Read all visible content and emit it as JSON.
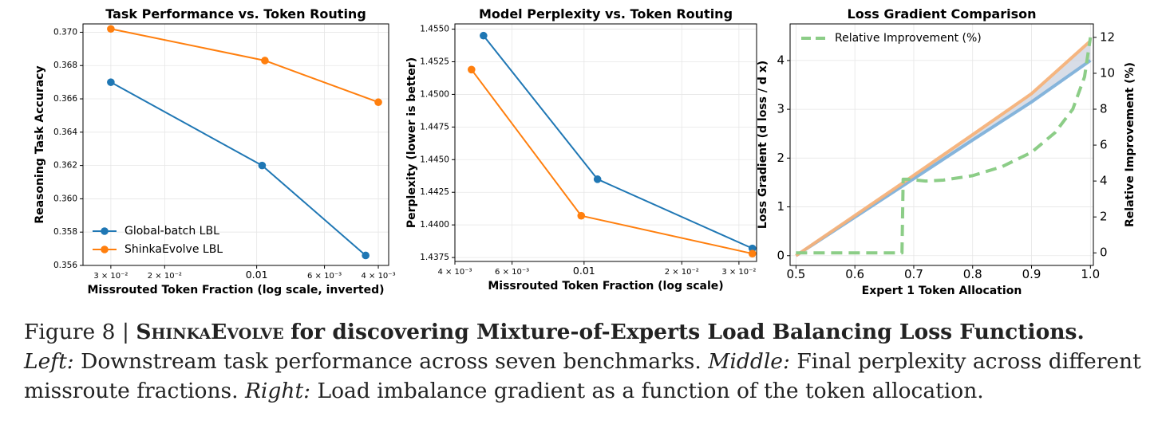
{
  "chart_data": [
    {
      "type": "line",
      "title": "Task Performance vs. Token Routing",
      "xlabel": "Missrouted Token Fraction (log scale, inverted)",
      "ylabel": "Reasoning Task Accuracy",
      "xscale": "log-inverted",
      "xlim": [
        0.037,
        0.0037
      ],
      "ylim": [
        0.356,
        0.3705
      ],
      "xticks": [
        {
          "value": 0.03,
          "label": "3 × 10⁻²"
        },
        {
          "value": 0.02,
          "label": "2 × 10⁻²"
        },
        {
          "value": 0.01,
          "label": "0.01"
        },
        {
          "value": 0.006,
          "label": "6 × 10⁻³"
        },
        {
          "value": 0.004,
          "label": "4 × 10⁻³"
        }
      ],
      "yticks": [
        "0.356",
        "0.358",
        "0.360",
        "0.362",
        "0.364",
        "0.366",
        "0.368",
        "0.370"
      ],
      "grid": true,
      "legend": "lower-left",
      "series": [
        {
          "name": "Global-batch LBL",
          "color": "#1f77b4",
          "x": [
            0.03,
            0.0096,
            0.0044
          ],
          "y": [
            0.367,
            0.362,
            0.3566
          ]
        },
        {
          "name": "ShinkaEvolve LBL",
          "color": "#ff7f0e",
          "x": [
            0.03,
            0.0094,
            0.004
          ],
          "y": [
            0.3702,
            0.3683,
            0.3658
          ]
        }
      ]
    },
    {
      "type": "line",
      "title": "Model Perplexity vs. Token Routing",
      "xlabel": "Missrouted Token Fraction (log scale)",
      "ylabel": "Perplexity (lower is better)",
      "xscale": "log",
      "xlim": [
        0.004,
        0.034
      ],
      "ylim": [
        1.4372,
        1.4554
      ],
      "xticks": [
        {
          "value": 0.004,
          "label": "4 × 10⁻³"
        },
        {
          "value": 0.006,
          "label": "6 × 10⁻³"
        },
        {
          "value": 0.01,
          "label": "0.01"
        },
        {
          "value": 0.02,
          "label": "2 × 10⁻²"
        },
        {
          "value": 0.03,
          "label": "3 × 10⁻²"
        }
      ],
      "yticks": [
        "1.4375",
        "1.4400",
        "1.4425",
        "1.4450",
        "1.4475",
        "1.4500",
        "1.4525",
        "1.4550"
      ],
      "grid": true,
      "series": [
        {
          "name": "",
          "color": "#1f77b4",
          "x": [
            0.0049,
            0.011,
            0.033
          ],
          "y": [
            1.4545,
            1.4435,
            1.4382
          ]
        },
        {
          "name": "",
          "color": "#ff7f0e",
          "x": [
            0.0045,
            0.0098,
            0.033
          ],
          "y": [
            1.4519,
            1.4407,
            1.4378
          ]
        }
      ]
    },
    {
      "type": "line",
      "title": "Loss Gradient Comparison",
      "xlabel": "Expert 1 Token Allocation",
      "ylabel": "Loss Gradient (d loss / d x)",
      "ylabel_right": "Relative Improvement (%)",
      "xlim": [
        0.49,
        1.005
      ],
      "ylim": [
        -0.2,
        4.75
      ],
      "ylim_right": [
        -0.7,
        12.75
      ],
      "xticks": [
        "0.5",
        "0.6",
        "0.7",
        "0.8",
        "0.9",
        "1.0"
      ],
      "yticks": [
        "0",
        "1",
        "2",
        "3",
        "4"
      ],
      "yticks_right": [
        "0",
        "2",
        "4",
        "6",
        "8",
        "10",
        "12"
      ],
      "grid": true,
      "legend": "top-left",
      "series": [
        {
          "name": "",
          "color": "#7fb1da",
          "x": [
            0.5,
            0.68,
            0.8,
            0.9,
            1.0
          ],
          "y": [
            0.0,
            1.42,
            2.37,
            3.15,
            4.0
          ]
        },
        {
          "name": "",
          "color": "#f5b27a",
          "x": [
            0.5,
            0.68,
            0.8,
            0.9,
            1.0
          ],
          "y": [
            0.0,
            1.48,
            2.48,
            3.32,
            4.4
          ]
        },
        {
          "name": "Relative Improvement (%)",
          "color": "#8ccd87",
          "axis": "right",
          "dashed": true,
          "x": [
            0.5,
            0.68,
            0.682,
            0.69,
            0.72,
            0.75,
            0.8,
            0.85,
            0.9,
            0.94,
            0.97,
            0.99,
            1.0
          ],
          "y": [
            0.0,
            0.0,
            4.1,
            4.1,
            4.0,
            4.05,
            4.3,
            4.8,
            5.6,
            6.7,
            8.0,
            9.8,
            12.0
          ]
        }
      ]
    }
  ],
  "caption": {
    "figure_label": "Figure 8 |",
    "name_smallcaps": "ShinkaEvolve",
    "title_rest": "for discovering Mixture-of-Experts Load Balancing Loss Functions.",
    "left_label": "Left:",
    "left_text": "Downstream task performance across seven benchmarks.",
    "middle_label": "Middle:",
    "middle_text": "Final perplexity across different",
    "line3": "missroute fractions.",
    "right_label": "Right:",
    "right_text": "Load imbalance gradient as a function of the token allocation."
  }
}
